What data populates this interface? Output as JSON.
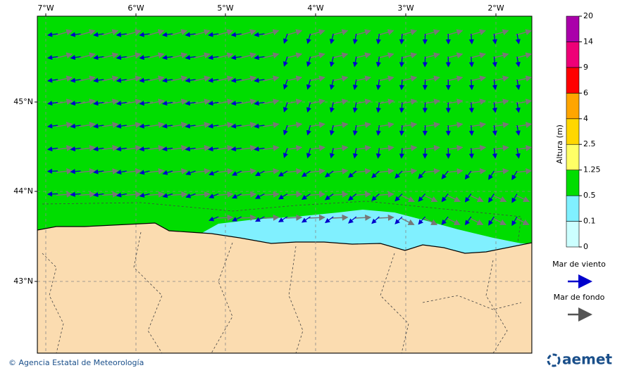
{
  "map": {
    "lon_labels": [
      "7°W",
      "6°W",
      "5°W",
      "4°W",
      "3°W",
      "2°W"
    ],
    "lat_labels": [
      "45°N",
      "44°N",
      "43°N"
    ]
  },
  "colorbar": {
    "title": "Altura (m)",
    "levels": [
      "0",
      "0.1",
      "0.5",
      "1.25",
      "2.5",
      "4",
      "6",
      "9",
      "14",
      "20"
    ],
    "colors": [
      "#ccffff",
      "#80f0ff",
      "#00dd00",
      "#ffff66",
      "#ffd700",
      "#ffa500",
      "#ff0000",
      "#ee0077",
      "#aa00aa"
    ]
  },
  "legend": {
    "items": [
      {
        "label": "Mar de viento",
        "color": "#0000cc"
      },
      {
        "label": "Mar de fondo",
        "color": "#555555"
      }
    ]
  },
  "footer": {
    "credit": "© Agencia Estatal de Meteorología",
    "logo": "aemet"
  }
}
